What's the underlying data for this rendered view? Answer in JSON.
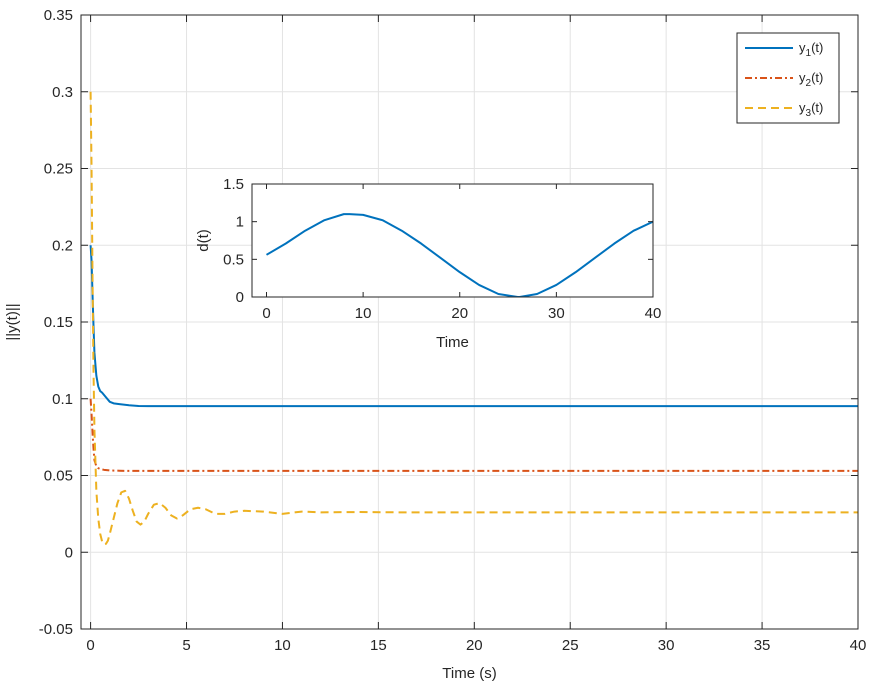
{
  "chart_data": [
    {
      "type": "line",
      "xlabel": "Time (s)",
      "ylabel": "||y(t)||",
      "xlim": [
        -0.5,
        40
      ],
      "ylim": [
        -0.05,
        0.35
      ],
      "xticks": [
        0,
        5,
        10,
        15,
        20,
        25,
        30,
        35,
        40
      ],
      "xtick_labels": [
        "0",
        "5",
        "10",
        "15",
        "20",
        "25",
        "30",
        "35",
        "40"
      ],
      "yticks": [
        -0.05,
        0,
        0.05,
        0.1,
        0.15,
        0.2,
        0.25,
        0.3,
        0.35
      ],
      "ytick_labels": [
        "-0.05",
        "0",
        "0.05",
        "0.1",
        "0.15",
        "0.2",
        "0.25",
        "0.3",
        "0.35"
      ],
      "grid": true,
      "legend_position": "top-right",
      "series": [
        {
          "name": "y1(t)",
          "legend_base": "y",
          "legend_sub": "1",
          "legend_suffix": "(t)",
          "color": "#0072BD",
          "style": "solid",
          "x": [
            0,
            0.05,
            0.1,
            0.15,
            0.2,
            0.3,
            0.4,
            0.5,
            0.6,
            0.8,
            1.0,
            1.2,
            1.5,
            2.0,
            2.5,
            3.0,
            4.0,
            6.0,
            10.0,
            20.0,
            30.0,
            40.0
          ],
          "y": [
            0.2,
            0.19,
            0.168,
            0.148,
            0.13,
            0.115,
            0.108,
            0.105,
            0.104,
            0.101,
            0.098,
            0.097,
            0.0965,
            0.0958,
            0.0953,
            0.0952,
            0.0952,
            0.0952,
            0.0952,
            0.0952,
            0.0952,
            0.0952
          ]
        },
        {
          "name": "y2(t)",
          "legend_base": "y",
          "legend_sub": "2",
          "legend_suffix": "(t)",
          "color": "#D95319",
          "style": "dashdot",
          "x": [
            0,
            0.05,
            0.1,
            0.15,
            0.2,
            0.3,
            0.4,
            0.5,
            0.7,
            1.0,
            1.5,
            2.0,
            3.0,
            5.0,
            10.0,
            20.0,
            30.0,
            40.0
          ],
          "y": [
            0.1,
            0.09,
            0.078,
            0.068,
            0.06,
            0.056,
            0.0548,
            0.0542,
            0.0537,
            0.0533,
            0.0531,
            0.053,
            0.053,
            0.053,
            0.053,
            0.053,
            0.053,
            0.053
          ]
        },
        {
          "name": "y3(t)",
          "legend_base": "y",
          "legend_sub": "3",
          "legend_suffix": "(t)",
          "color": "#EDB120",
          "style": "dashed",
          "x": [
            0,
            0.05,
            0.1,
            0.15,
            0.2,
            0.3,
            0.4,
            0.5,
            0.6,
            0.7,
            0.8,
            0.9,
            1.0,
            1.2,
            1.4,
            1.6,
            1.8,
            2.0,
            2.2,
            2.4,
            2.6,
            2.8,
            3.0,
            3.3,
            3.6,
            3.9,
            4.2,
            4.5,
            4.8,
            5.2,
            5.6,
            6.0,
            6.5,
            7.0,
            7.5,
            8.0,
            9.0,
            10.0,
            11.0,
            12.0,
            14.0,
            16.0,
            20.0,
            30.0,
            40.0
          ],
          "y": [
            0.3,
            0.25,
            0.18,
            0.12,
            0.08,
            0.04,
            0.022,
            0.012,
            0.007,
            0.005,
            0.0055,
            0.0075,
            0.012,
            0.022,
            0.032,
            0.039,
            0.04,
            0.035,
            0.027,
            0.02,
            0.018,
            0.02,
            0.025,
            0.031,
            0.032,
            0.029,
            0.024,
            0.022,
            0.024,
            0.028,
            0.029,
            0.028,
            0.025,
            0.025,
            0.0265,
            0.027,
            0.0265,
            0.025,
            0.0265,
            0.026,
            0.0262,
            0.026,
            0.026,
            0.026,
            0.026
          ]
        }
      ]
    },
    {
      "type": "line",
      "xlabel": "Time",
      "ylabel": "d(t)",
      "xlim": [
        -1.5,
        40
      ],
      "ylim": [
        0,
        1.5
      ],
      "xticks": [
        0,
        10,
        20,
        30,
        40
      ],
      "xtick_labels": [
        "0",
        "10",
        "20",
        "30",
        "40"
      ],
      "yticks": [
        0,
        0.5,
        1,
        1.5
      ],
      "ytick_labels": [
        "0",
        "0.5",
        "1",
        "1.5"
      ],
      "grid": false,
      "series": [
        {
          "color": "#0072BD",
          "style": "solid",
          "x": [
            0,
            2,
            4,
            6,
            8,
            8.6,
            10,
            12,
            14,
            16,
            18,
            20,
            22,
            24,
            26,
            26.2,
            28,
            30,
            32,
            34,
            36,
            38,
            40
          ],
          "y": [
            0.56,
            0.71,
            0.88,
            1.02,
            1.1,
            1.1,
            1.09,
            1.02,
            0.88,
            0.71,
            0.52,
            0.33,
            0.16,
            0.04,
            0.0,
            0.0,
            0.04,
            0.16,
            0.33,
            0.52,
            0.71,
            0.88,
            1.0
          ]
        }
      ]
    }
  ]
}
